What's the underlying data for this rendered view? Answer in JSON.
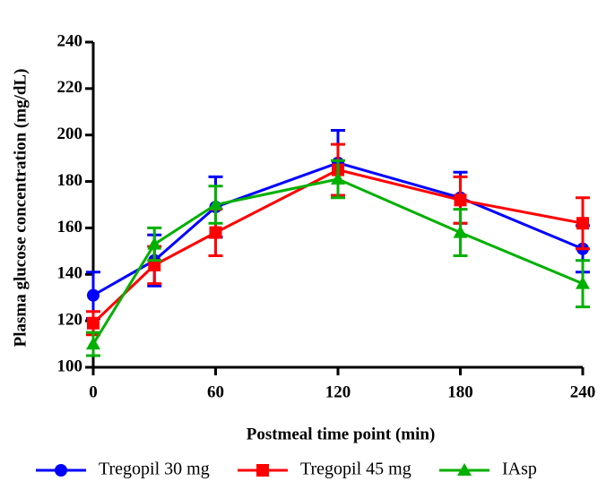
{
  "chart_data": {
    "type": "line",
    "x_label": "Postmeal time point (min)",
    "y_label": "Plasma glucose concentration  (mg/dL)",
    "x": [
      0,
      30,
      60,
      120,
      180,
      240
    ],
    "xlim": [
      0,
      240
    ],
    "xticks": [
      0,
      60,
      120,
      180,
      240
    ],
    "ylim": [
      100,
      240
    ],
    "yticks": [
      100,
      120,
      140,
      160,
      180,
      200,
      220,
      240
    ],
    "legend": "bottom",
    "series": [
      {
        "name": "Tregopil 30 mg",
        "color": "#0000ff",
        "marker": "circle",
        "values": [
          131,
          146,
          169,
          188,
          173,
          151
        ],
        "errors": [
          10,
          11,
          13,
          14,
          11,
          10
        ]
      },
      {
        "name": "Tregopil 45 mg",
        "color": "#ff0000",
        "marker": "square",
        "values": [
          119,
          144,
          158,
          185,
          172,
          162
        ],
        "errors": [
          5,
          8,
          10,
          11,
          10,
          11
        ]
      },
      {
        "name": "IAsp",
        "color": "#00b000",
        "marker": "triangle",
        "values": [
          110,
          153,
          170,
          181,
          158,
          136
        ],
        "errors": [
          5,
          7,
          8,
          8,
          10,
          10
        ]
      }
    ]
  }
}
